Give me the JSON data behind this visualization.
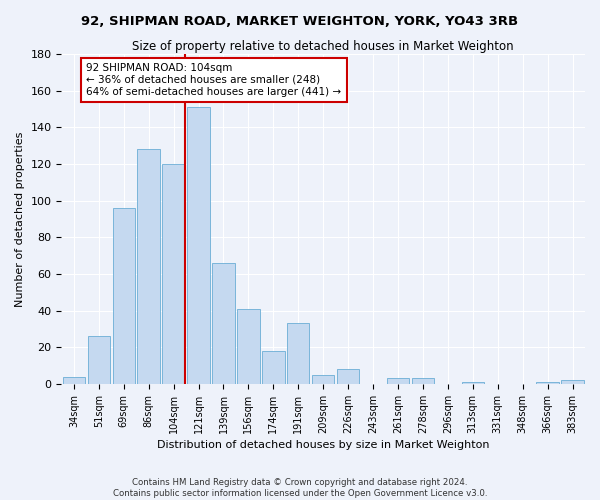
{
  "title1": "92, SHIPMAN ROAD, MARKET WEIGHTON, YORK, YO43 3RB",
  "title2": "Size of property relative to detached houses in Market Weighton",
  "xlabel": "Distribution of detached houses by size in Market Weighton",
  "ylabel": "Number of detached properties",
  "bar_labels": [
    "34sqm",
    "51sqm",
    "69sqm",
    "86sqm",
    "104sqm",
    "121sqm",
    "139sqm",
    "156sqm",
    "174sqm",
    "191sqm",
    "209sqm",
    "226sqm",
    "243sqm",
    "261sqm",
    "278sqm",
    "296sqm",
    "313sqm",
    "331sqm",
    "348sqm",
    "366sqm",
    "383sqm"
  ],
  "bar_heights": [
    4,
    26,
    96,
    128,
    120,
    151,
    66,
    41,
    18,
    33,
    5,
    8,
    0,
    3,
    3,
    0,
    1,
    0,
    0,
    1,
    2
  ],
  "bar_color": "#c5d9f0",
  "bar_edge_color": "#6baed6",
  "vline_color": "#cc0000",
  "annotation_text": "92 SHIPMAN ROAD: 104sqm\n← 36% of detached houses are smaller (248)\n64% of semi-detached houses are larger (441) →",
  "annotation_box_color": "#ffffff",
  "annotation_box_edge": "#cc0000",
  "ylim": [
    0,
    180
  ],
  "yticks": [
    0,
    20,
    40,
    60,
    80,
    100,
    120,
    140,
    160,
    180
  ],
  "footer1": "Contains HM Land Registry data © Crown copyright and database right 2024.",
  "footer2": "Contains public sector information licensed under the Open Government Licence v3.0.",
  "bg_color": "#eef2fa",
  "plot_bg_color": "#eef2fa"
}
